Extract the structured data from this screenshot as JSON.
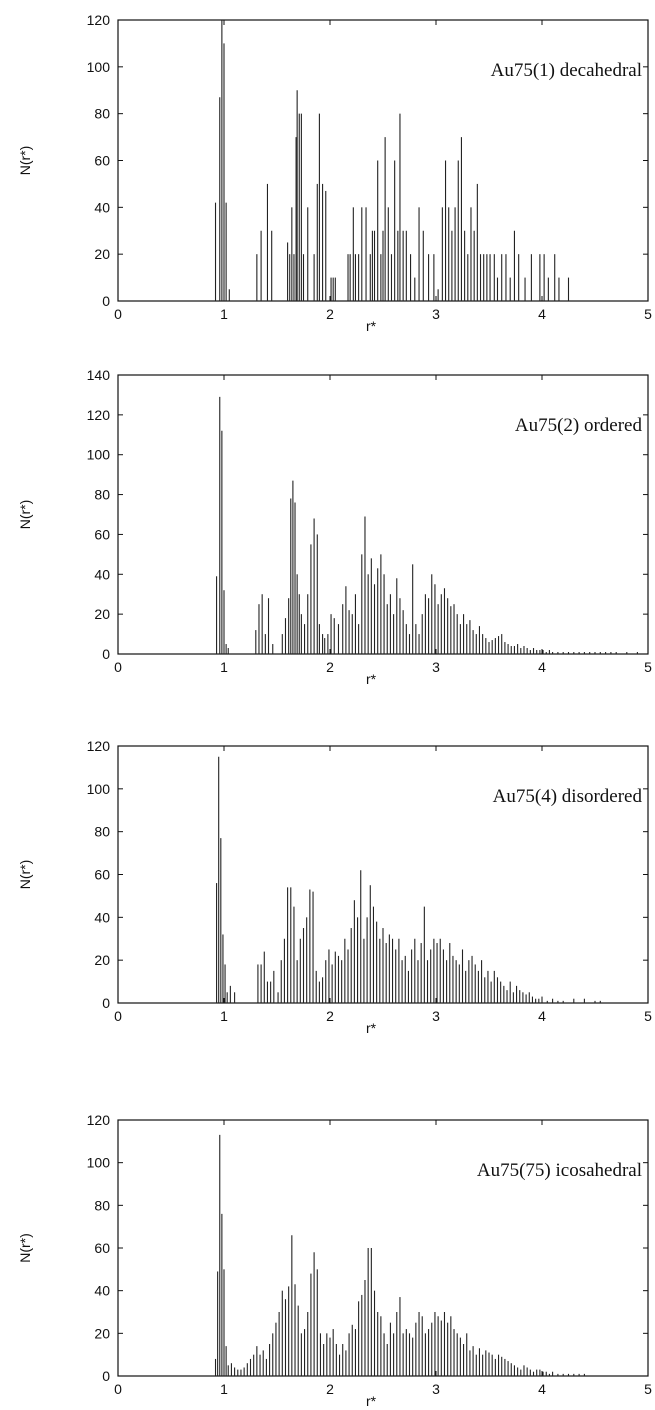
{
  "chart_data": [
    {
      "type": "bar",
      "title": "Au75(1)    decahedral",
      "xlabel": "r*",
      "ylabel": "N(r*)",
      "xlim": [
        0,
        5
      ],
      "ylim": [
        0,
        120
      ],
      "xticks": [
        "0",
        "1",
        "2",
        "3",
        "4",
        "5"
      ],
      "yticks": [
        "0",
        "20",
        "40",
        "60",
        "80",
        "100",
        "120"
      ],
      "x": [
        0.92,
        0.96,
        0.98,
        1.0,
        1.02,
        1.05,
        1.31,
        1.35,
        1.41,
        1.45,
        1.6,
        1.62,
        1.64,
        1.66,
        1.68,
        1.69,
        1.71,
        1.73,
        1.75,
        1.79,
        1.85,
        1.88,
        1.9,
        1.93,
        1.96,
        2.01,
        2.03,
        2.05,
        2.17,
        2.19,
        2.22,
        2.24,
        2.27,
        2.3,
        2.34,
        2.38,
        2.4,
        2.42,
        2.45,
        2.48,
        2.5,
        2.52,
        2.55,
        2.58,
        2.61,
        2.64,
        2.66,
        2.69,
        2.72,
        2.76,
        2.8,
        2.84,
        2.88,
        2.93,
        2.98,
        3.02,
        3.06,
        3.09,
        3.12,
        3.15,
        3.18,
        3.21,
        3.24,
        3.27,
        3.3,
        3.33,
        3.36,
        3.39,
        3.42,
        3.45,
        3.48,
        3.51,
        3.55,
        3.58,
        3.62,
        3.66,
        3.7,
        3.74,
        3.78,
        3.84,
        3.9,
        3.98,
        4.02,
        4.06,
        4.12,
        4.16,
        4.25
      ],
      "values": [
        42,
        87,
        120,
        110,
        42,
        5,
        20,
        30,
        50,
        30,
        25,
        20,
        40,
        20,
        70,
        90,
        80,
        80,
        20,
        40,
        20,
        50,
        80,
        50,
        47,
        10,
        10,
        10,
        20,
        20,
        40,
        20,
        20,
        40,
        40,
        20,
        30,
        30,
        60,
        20,
        30,
        70,
        40,
        20,
        60,
        30,
        80,
        30,
        30,
        20,
        10,
        40,
        30,
        20,
        20,
        5,
        40,
        60,
        40,
        30,
        40,
        60,
        70,
        30,
        20,
        40,
        30,
        50,
        20,
        20,
        20,
        20,
        20,
        10,
        20,
        20,
        10,
        30,
        20,
        10,
        20,
        20,
        20,
        10,
        20,
        10,
        10
      ]
    },
    {
      "type": "bar",
      "title": "Au75(2)    ordered",
      "xlabel": "r*",
      "ylabel": "N(r*)",
      "xlim": [
        0,
        5
      ],
      "ylim": [
        0,
        140
      ],
      "xticks": [
        "0",
        "1",
        "2",
        "3",
        "4",
        "5"
      ],
      "yticks": [
        "0",
        "20",
        "40",
        "60",
        "80",
        "100",
        "120",
        "140"
      ],
      "x": [
        0.93,
        0.96,
        0.98,
        1.0,
        1.02,
        1.04,
        1.3,
        1.33,
        1.36,
        1.39,
        1.42,
        1.46,
        1.55,
        1.58,
        1.61,
        1.63,
        1.65,
        1.67,
        1.69,
        1.71,
        1.73,
        1.76,
        1.79,
        1.82,
        1.85,
        1.88,
        1.9,
        1.93,
        1.95,
        1.98,
        2.01,
        2.04,
        2.08,
        2.12,
        2.15,
        2.18,
        2.21,
        2.24,
        2.27,
        2.3,
        2.33,
        2.36,
        2.39,
        2.42,
        2.45,
        2.48,
        2.51,
        2.54,
        2.57,
        2.6,
        2.63,
        2.66,
        2.69,
        2.72,
        2.75,
        2.78,
        2.81,
        2.84,
        2.87,
        2.9,
        2.93,
        2.96,
        2.99,
        3.02,
        3.05,
        3.08,
        3.11,
        3.14,
        3.17,
        3.2,
        3.23,
        3.26,
        3.29,
        3.32,
        3.35,
        3.38,
        3.41,
        3.44,
        3.47,
        3.5,
        3.53,
        3.56,
        3.59,
        3.62,
        3.65,
        3.68,
        3.71,
        3.74,
        3.77,
        3.8,
        3.83,
        3.86,
        3.89,
        3.92,
        3.95,
        3.98,
        4.01,
        4.04,
        4.07,
        4.1,
        4.15,
        4.2,
        4.25,
        4.3,
        4.35,
        4.4,
        4.45,
        4.5,
        4.55,
        4.6,
        4.65,
        4.7,
        4.8,
        4.9
      ],
      "values": [
        39,
        129,
        112,
        32,
        5,
        3,
        12,
        25,
        30,
        10,
        28,
        5,
        10,
        18,
        28,
        78,
        87,
        76,
        40,
        30,
        20,
        15,
        30,
        55,
        68,
        60,
        15,
        10,
        8,
        10,
        20,
        18,
        15,
        25,
        34,
        22,
        20,
        30,
        15,
        50,
        69,
        40,
        48,
        35,
        43,
        50,
        40,
        25,
        30,
        20,
        38,
        28,
        22,
        15,
        10,
        45,
        15,
        10,
        20,
        30,
        28,
        40,
        35,
        25,
        30,
        33,
        28,
        24,
        25,
        20,
        15,
        20,
        15,
        17,
        12,
        10,
        14,
        10,
        8,
        6,
        7,
        8,
        9,
        10,
        6,
        5,
        4,
        4,
        5,
        3,
        4,
        3,
        2,
        3,
        2,
        2,
        2,
        1,
        2,
        1,
        1,
        1,
        1,
        1,
        1,
        1,
        1,
        1,
        1,
        1,
        1,
        1,
        1,
        1
      ]
    },
    {
      "type": "bar",
      "title": "Au75(4)    disordered",
      "xlabel": "r*",
      "ylabel": "N(r*)",
      "xlim": [
        0,
        5
      ],
      "ylim": [
        0,
        120
      ],
      "xticks": [
        "0",
        "1",
        "2",
        "3",
        "4",
        "5"
      ],
      "yticks": [
        "0",
        "20",
        "40",
        "60",
        "80",
        "100",
        "120"
      ],
      "x": [
        0.93,
        0.95,
        0.97,
        0.99,
        1.01,
        1.03,
        1.06,
        1.1,
        1.32,
        1.35,
        1.38,
        1.41,
        1.44,
        1.47,
        1.51,
        1.54,
        1.57,
        1.6,
        1.63,
        1.66,
        1.69,
        1.72,
        1.75,
        1.78,
        1.81,
        1.84,
        1.87,
        1.9,
        1.93,
        1.96,
        1.99,
        2.02,
        2.05,
        2.08,
        2.11,
        2.14,
        2.17,
        2.2,
        2.23,
        2.26,
        2.29,
        2.32,
        2.35,
        2.38,
        2.41,
        2.44,
        2.47,
        2.5,
        2.53,
        2.56,
        2.59,
        2.62,
        2.65,
        2.68,
        2.71,
        2.74,
        2.77,
        2.8,
        2.83,
        2.86,
        2.89,
        2.92,
        2.95,
        2.98,
        3.01,
        3.04,
        3.07,
        3.1,
        3.13,
        3.16,
        3.19,
        3.22,
        3.25,
        3.28,
        3.31,
        3.34,
        3.37,
        3.4,
        3.43,
        3.46,
        3.49,
        3.52,
        3.55,
        3.58,
        3.61,
        3.64,
        3.67,
        3.7,
        3.73,
        3.76,
        3.79,
        3.82,
        3.85,
        3.88,
        3.91,
        3.94,
        3.97,
        4.0,
        4.05,
        4.1,
        4.15,
        4.2,
        4.3,
        4.4,
        4.5,
        4.55
      ],
      "values": [
        56,
        115,
        77,
        32,
        18,
        5,
        8,
        5,
        18,
        18,
        24,
        10,
        10,
        15,
        5,
        20,
        30,
        54,
        54,
        45,
        20,
        30,
        35,
        40,
        53,
        52,
        15,
        10,
        12,
        20,
        25,
        18,
        24,
        22,
        20,
        30,
        25,
        35,
        48,
        40,
        62,
        30,
        40,
        55,
        45,
        38,
        30,
        35,
        28,
        32,
        30,
        25,
        30,
        20,
        22,
        15,
        25,
        30,
        20,
        28,
        45,
        20,
        25,
        30,
        28,
        30,
        25,
        20,
        28,
        22,
        20,
        18,
        25,
        15,
        20,
        22,
        18,
        15,
        20,
        12,
        15,
        10,
        15,
        12,
        10,
        8,
        6,
        10,
        5,
        8,
        6,
        5,
        4,
        5,
        3,
        2,
        2,
        3,
        1,
        2,
        1,
        1,
        2,
        2,
        1,
        1
      ]
    },
    {
      "type": "bar",
      "title": "Au75(75)    icosahedral",
      "xlabel": "r*",
      "ylabel": "N(r*)",
      "xlim": [
        0,
        5
      ],
      "ylim": [
        0,
        120
      ],
      "xticks": [
        "0",
        "1",
        "2",
        "3",
        "4",
        "5"
      ],
      "yticks": [
        "0",
        "20",
        "40",
        "60",
        "80",
        "100",
        "120"
      ],
      "x": [
        0.92,
        0.94,
        0.96,
        0.98,
        1.0,
        1.02,
        1.04,
        1.07,
        1.1,
        1.13,
        1.16,
        1.19,
        1.22,
        1.25,
        1.28,
        1.31,
        1.34,
        1.37,
        1.4,
        1.43,
        1.46,
        1.49,
        1.52,
        1.55,
        1.58,
        1.61,
        1.64,
        1.67,
        1.7,
        1.73,
        1.76,
        1.79,
        1.82,
        1.85,
        1.88,
        1.91,
        1.94,
        1.97,
        2.0,
        2.03,
        2.06,
        2.09,
        2.12,
        2.15,
        2.18,
        2.21,
        2.24,
        2.27,
        2.3,
        2.33,
        2.36,
        2.39,
        2.42,
        2.45,
        2.48,
        2.51,
        2.54,
        2.57,
        2.6,
        2.63,
        2.66,
        2.69,
        2.72,
        2.75,
        2.78,
        2.81,
        2.84,
        2.87,
        2.9,
        2.93,
        2.96,
        2.99,
        3.02,
        3.05,
        3.08,
        3.11,
        3.14,
        3.17,
        3.2,
        3.23,
        3.26,
        3.29,
        3.32,
        3.35,
        3.38,
        3.41,
        3.44,
        3.47,
        3.5,
        3.53,
        3.56,
        3.59,
        3.62,
        3.65,
        3.68,
        3.71,
        3.74,
        3.77,
        3.8,
        3.83,
        3.86,
        3.89,
        3.92,
        3.95,
        3.98,
        4.01,
        4.04,
        4.07,
        4.1,
        4.15,
        4.2,
        4.25,
        4.3,
        4.35,
        4.4
      ],
      "values": [
        8,
        49,
        113,
        76,
        50,
        14,
        5,
        6,
        4,
        3,
        3,
        4,
        6,
        8,
        10,
        14,
        10,
        12,
        8,
        15,
        20,
        25,
        30,
        40,
        36,
        42,
        66,
        43,
        33,
        20,
        22,
        30,
        48,
        58,
        50,
        20,
        15,
        20,
        18,
        22,
        15,
        10,
        15,
        12,
        20,
        24,
        22,
        35,
        38,
        45,
        60,
        60,
        40,
        30,
        28,
        20,
        15,
        25,
        20,
        30,
        37,
        20,
        22,
        20,
        18,
        25,
        30,
        28,
        20,
        22,
        25,
        30,
        28,
        26,
        30,
        25,
        28,
        22,
        20,
        18,
        15,
        20,
        12,
        14,
        10,
        13,
        10,
        12,
        11,
        10,
        8,
        10,
        9,
        8,
        7,
        6,
        5,
        4,
        3,
        5,
        4,
        3,
        2,
        3,
        3,
        2,
        2,
        1,
        2,
        1,
        1,
        1,
        1,
        1,
        1
      ]
    }
  ]
}
